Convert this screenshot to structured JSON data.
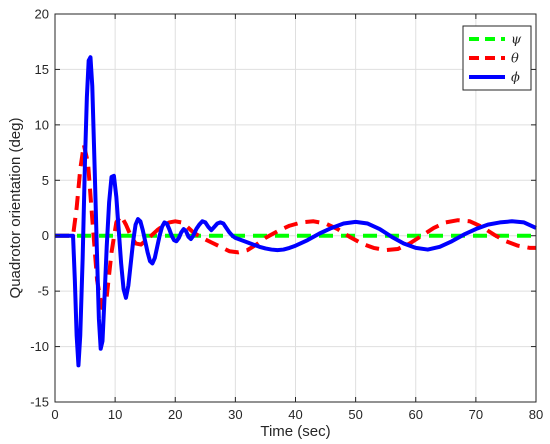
{
  "chart_data": {
    "type": "line",
    "xlabel": "Time (sec)",
    "ylabel": "Quadrotor orientation (deg)",
    "xlim": [
      0,
      80
    ],
    "ylim": [
      -15,
      20
    ],
    "xticks": [
      0,
      10,
      20,
      30,
      40,
      50,
      60,
      70,
      80
    ],
    "yticks": [
      -15,
      -10,
      -5,
      0,
      5,
      10,
      15,
      20
    ],
    "xtick_labels": [
      "0",
      "10",
      "20",
      "30",
      "40",
      "50",
      "60",
      "70",
      "80"
    ],
    "ytick_labels": [
      "-15",
      "-10",
      "-5",
      "0",
      "5",
      "10",
      "15",
      "20"
    ],
    "grid": true,
    "legend_position": "top-right",
    "series": [
      {
        "name": "ψ",
        "color": "#00ff00",
        "style": "dashed",
        "x": [
          0,
          80
        ],
        "y": [
          0,
          0
        ]
      },
      {
        "name": "θ",
        "color": "#ff0000",
        "style": "dashed",
        "x": [
          0,
          3,
          3.6,
          4.2,
          4.8,
          5.5,
          6.2,
          7,
          7.8,
          8.6,
          9.4,
          10.2,
          11,
          11.8,
          12.6,
          13.4,
          14.3,
          15.2,
          16,
          17,
          18,
          19,
          20,
          21,
          22,
          23,
          24.5,
          26,
          27.5,
          29,
          30.5,
          32,
          33.5,
          35,
          37,
          39,
          41,
          43,
          45,
          47,
          49,
          51,
          53,
          55,
          57,
          59,
          61,
          63,
          65,
          67,
          69,
          71,
          73,
          75,
          77,
          79,
          80
        ],
        "y": [
          0,
          0,
          2.5,
          6,
          8.2,
          6.5,
          1.5,
          -4,
          -6.5,
          -5.5,
          -1.5,
          1.2,
          1.8,
          1,
          0,
          -0.7,
          -0.8,
          -0.4,
          0,
          0.5,
          0.9,
          1.2,
          1.3,
          1.2,
          0.8,
          0.3,
          -0.2,
          -0.6,
          -1,
          -1.4,
          -1.5,
          -1.3,
          -0.8,
          -0.2,
          0.4,
          0.9,
          1.2,
          1.3,
          1.1,
          0.6,
          -0.1,
          -0.7,
          -1.1,
          -1.3,
          -1.2,
          -0.7,
          0,
          0.7,
          1.2,
          1.4,
          1.3,
          0.8,
          0.1,
          -0.5,
          -0.9,
          -1.1,
          -1.1
        ]
      },
      {
        "name": "ϕ",
        "color": "#0000ff",
        "style": "solid",
        "x": [
          0,
          3,
          3.3,
          3.6,
          3.9,
          4.2,
          4.6,
          5,
          5.3,
          5.6,
          5.9,
          6.2,
          6.6,
          7,
          7.3,
          7.6,
          7.9,
          8.2,
          8.6,
          9,
          9.4,
          9.8,
          10.2,
          10.6,
          11,
          11.4,
          11.8,
          12.2,
          12.6,
          13,
          13.4,
          13.8,
          14.2,
          14.6,
          15,
          15.4,
          15.8,
          16.2,
          16.6,
          17,
          17.4,
          17.8,
          18.2,
          18.6,
          19,
          19.4,
          19.8,
          20.2,
          20.6,
          21,
          21.4,
          21.8,
          22.2,
          22.6,
          23,
          23.5,
          24,
          24.5,
          25,
          25.5,
          26,
          26.5,
          27,
          27.5,
          28,
          28.5,
          29,
          29.5,
          30,
          31,
          32,
          33,
          34,
          35,
          36,
          37,
          38,
          39,
          40,
          42,
          44,
          46,
          48,
          50,
          52,
          54,
          56,
          58,
          60,
          62,
          64,
          66,
          68,
          70,
          72,
          74,
          76,
          78,
          80
        ],
        "y": [
          0,
          0,
          -4,
          -9,
          -11.7,
          -9,
          -2,
          7,
          12.5,
          15.8,
          16.1,
          13.5,
          6,
          -2,
          -7.5,
          -10.2,
          -9.5,
          -6,
          -1,
          3,
          5.3,
          5.4,
          3.5,
          0.5,
          -2.5,
          -4.8,
          -5.6,
          -4.5,
          -2.5,
          -0.5,
          1,
          1.5,
          1.3,
          0.5,
          -0.5,
          -1.5,
          -2.3,
          -2.5,
          -2,
          -1,
          0,
          0.8,
          1.2,
          1.1,
          0.6,
          0,
          -0.4,
          -0.5,
          -0.2,
          0.3,
          0.6,
          0.4,
          -0.1,
          -0.3,
          0,
          0.6,
          1,
          1.3,
          1.2,
          0.8,
          0.5,
          0.8,
          1.1,
          1.2,
          1.1,
          0.7,
          0.3,
          0,
          -0.2,
          -0.4,
          -0.6,
          -0.8,
          -1,
          -1.15,
          -1.25,
          -1.3,
          -1.25,
          -1.1,
          -0.9,
          -0.4,
          0.2,
          0.7,
          1.1,
          1.25,
          1.1,
          0.6,
          -0.1,
          -0.7,
          -1.1,
          -1.25,
          -1,
          -0.5,
          0.1,
          0.6,
          1,
          1.2,
          1.3,
          1.2,
          0.7
        ]
      }
    ]
  }
}
